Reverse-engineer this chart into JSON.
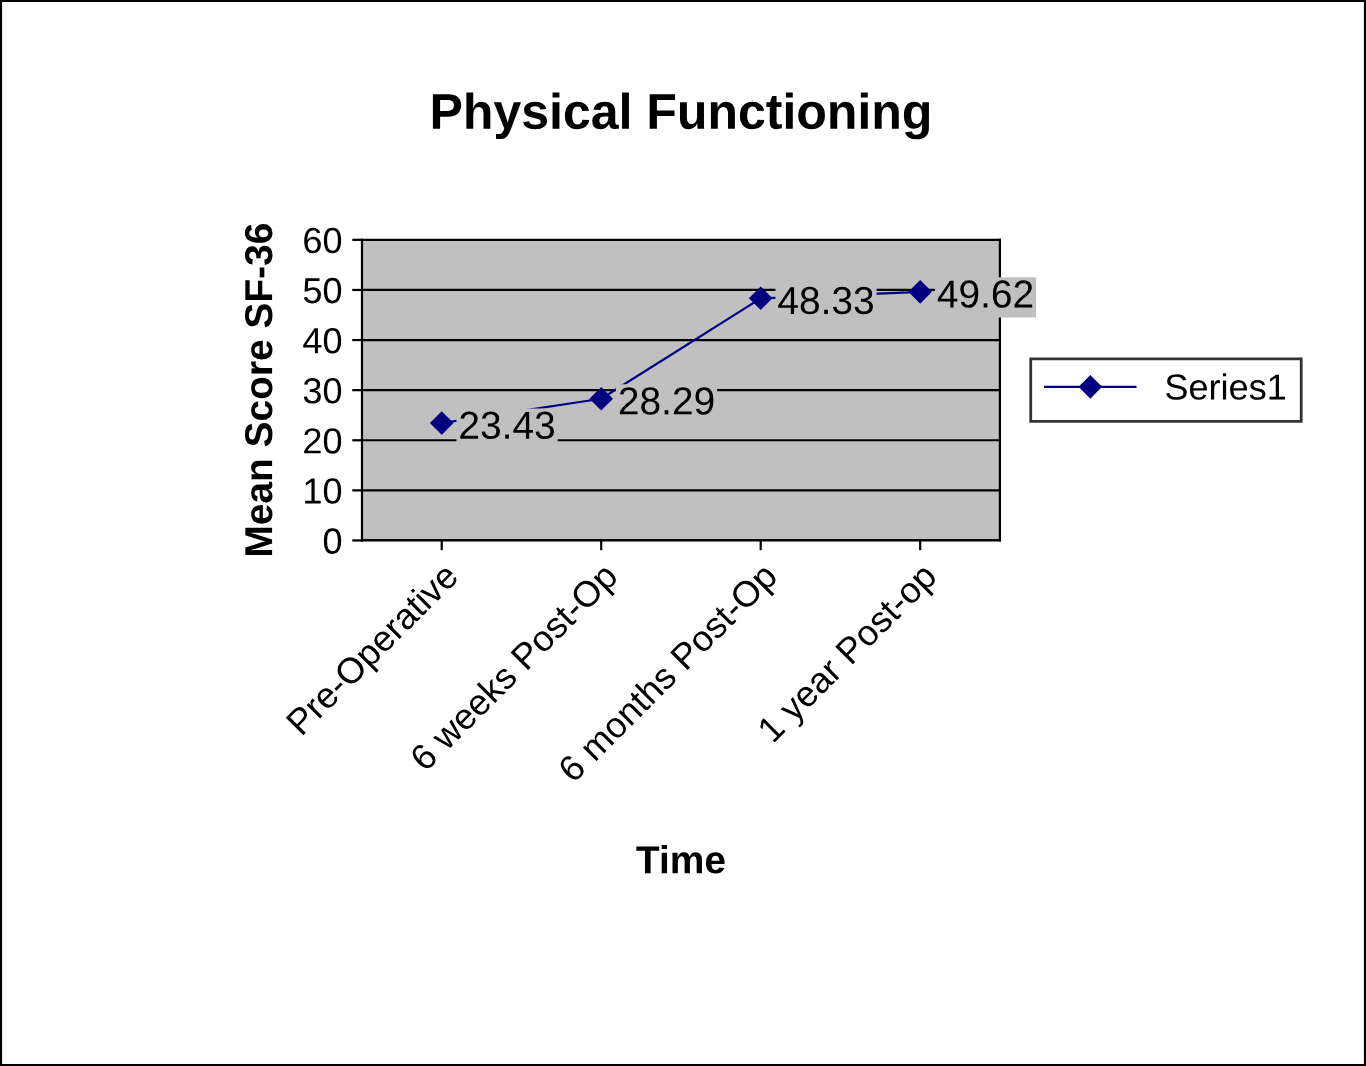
{
  "chart_data": {
    "type": "line",
    "title": "Physical Functioning",
    "xlabel": "Time",
    "ylabel": "Mean Score SF-36",
    "categories": [
      "Pre-Operative",
      "6 weeks Post-Op",
      "6 months Post-Op",
      "1 year Post-op"
    ],
    "series": [
      {
        "name": "Series1",
        "color": "#000080",
        "values": [
          23.43,
          28.29,
          48.33,
          49.62
        ]
      }
    ],
    "ylim": [
      0,
      60
    ],
    "yticks": [
      0,
      10,
      20,
      30,
      40,
      50,
      60
    ],
    "grid": "y",
    "legend": "right",
    "marker": "diamond",
    "line_style": "solid",
    "data_labels": true
  }
}
